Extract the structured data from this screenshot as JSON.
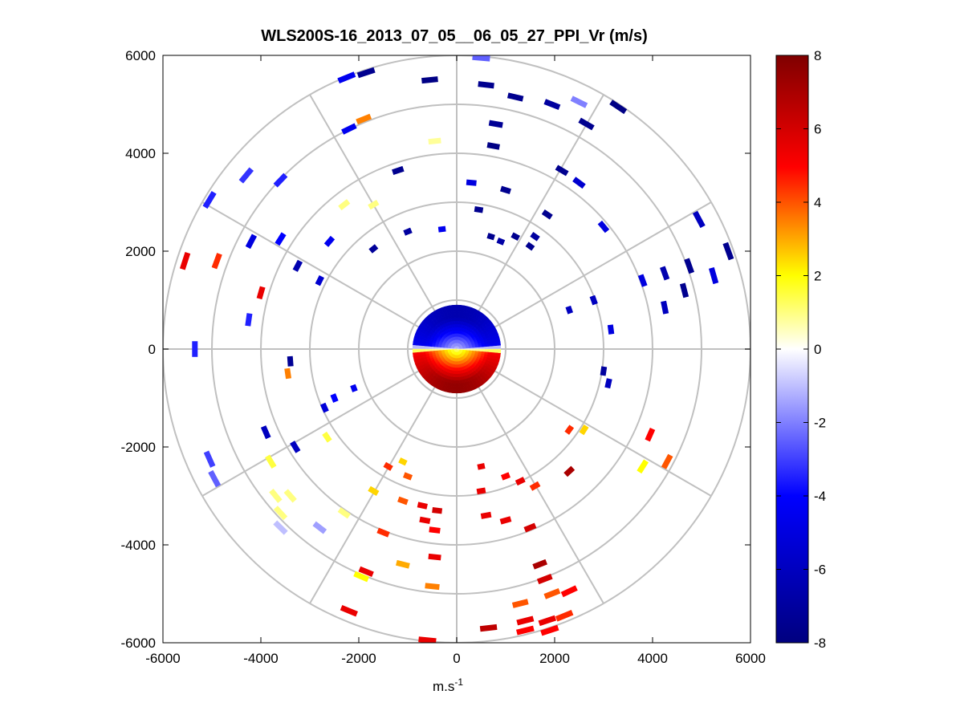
{
  "chart_data": {
    "type": "scatter",
    "subtype": "polar-ppi-scan",
    "title": "WLS200S-16_2013_07_05__06_05_27_PPI_Vr (m/s)",
    "xlabel": "m.s",
    "xlabel_superscript": "-1",
    "ylabel": "",
    "xlim": [
      -6000,
      6000
    ],
    "ylim": [
      -6000,
      6000
    ],
    "x_ticks": [
      -6000,
      -4000,
      -2000,
      0,
      2000,
      4000,
      6000
    ],
    "x_tick_labels": [
      "-6000",
      "-4000",
      "-2000",
      "0",
      "2000",
      "4000",
      "6000"
    ],
    "y_ticks": [
      6000,
      4000,
      2000,
      0,
      -2000,
      -4000,
      -6000
    ],
    "y_tick_labels": [
      "6000",
      "4000",
      "2000",
      "0",
      "-2000",
      "-4000",
      "-6000"
    ],
    "polar_grid": {
      "ring_radii": [
        1000,
        2000,
        3000,
        4000,
        5000,
        6000
      ],
      "spoke_angles_deg": [
        0,
        30,
        60,
        90,
        120,
        150,
        180,
        210,
        240,
        270,
        300,
        330
      ],
      "grid_color": "#c0c0c0"
    },
    "colorbar": {
      "range": [
        -8,
        8
      ],
      "ticks": [
        8,
        6,
        4,
        2,
        0,
        -2,
        -4,
        -6,
        -8
      ],
      "tick_labels": [
        "8",
        "6",
        "4",
        "2",
        "0",
        "-2",
        "-4",
        "-6",
        "-8"
      ],
      "colors": [
        "#00007f",
        "#0000ff",
        "#ffffff",
        "#ffff00",
        "#ff0000",
        "#7f0000"
      ]
    },
    "near_field": {
      "radius_m": 900,
      "description_values": "negative velocities north half (approx -6 to -1), positive south half (approx 1 to 7)"
    },
    "points": [
      {
        "x": -1850,
        "y": 5650,
        "v": -7.5
      },
      {
        "x": -2250,
        "y": 5550,
        "v": -4.5
      },
      {
        "x": -550,
        "y": 5500,
        "v": -7.8
      },
      {
        "x": 500,
        "y": 5950,
        "v": -2.5
      },
      {
        "x": 600,
        "y": 5400,
        "v": -7.5
      },
      {
        "x": 1200,
        "y": 5150,
        "v": -7.5
      },
      {
        "x": 1950,
        "y": 5000,
        "v": -7.0
      },
      {
        "x": 2500,
        "y": 5050,
        "v": -2.0
      },
      {
        "x": 3300,
        "y": 4950,
        "v": -7.8
      },
      {
        "x": 2650,
        "y": 4600,
        "v": -7.5
      },
      {
        "x": 800,
        "y": 4600,
        "v": -7.3
      },
      {
        "x": 750,
        "y": 4150,
        "v": -7.8
      },
      {
        "x": -1900,
        "y": 4700,
        "v": 3.5
      },
      {
        "x": -2200,
        "y": 4500,
        "v": -4.5
      },
      {
        "x": -450,
        "y": 4250,
        "v": 0.8
      },
      {
        "x": -4300,
        "y": 3550,
        "v": -3.2
      },
      {
        "x": -3600,
        "y": 3450,
        "v": -3.5
      },
      {
        "x": -5050,
        "y": 3050,
        "v": -3.5
      },
      {
        "x": -1200,
        "y": 3650,
        "v": -7.5
      },
      {
        "x": 300,
        "y": 3400,
        "v": -5.0
      },
      {
        "x": 1000,
        "y": 3250,
        "v": -7.5
      },
      {
        "x": 2150,
        "y": 3650,
        "v": -7.5
      },
      {
        "x": 2500,
        "y": 3400,
        "v": -5.5
      },
      {
        "x": 1850,
        "y": 2750,
        "v": -7.5
      },
      {
        "x": 3000,
        "y": 2500,
        "v": -5.0
      },
      {
        "x": -2300,
        "y": 2950,
        "v": 1.0
      },
      {
        "x": -1700,
        "y": 2950,
        "v": 1.0
      },
      {
        "x": 450,
        "y": 2850,
        "v": -7.5
      },
      {
        "x": -1000,
        "y": 2400,
        "v": -7.0
      },
      {
        "x": -300,
        "y": 2450,
        "v": -4.5
      },
      {
        "x": 700,
        "y": 2300,
        "v": -7.5
      },
      {
        "x": 1200,
        "y": 2300,
        "v": -7.5
      },
      {
        "x": 900,
        "y": 2200,
        "v": -6.8
      },
      {
        "x": 1500,
        "y": 2100,
        "v": -7.5
      },
      {
        "x": 1600,
        "y": 2300,
        "v": -7.0
      },
      {
        "x": -4200,
        "y": 2200,
        "v": -5.0
      },
      {
        "x": -3600,
        "y": 2250,
        "v": -4.0
      },
      {
        "x": -2600,
        "y": 2200,
        "v": -4.5
      },
      {
        "x": -1700,
        "y": 2050,
        "v": -7.2
      },
      {
        "x": -5550,
        "y": 1800,
        "v": 5.5
      },
      {
        "x": -4900,
        "y": 1800,
        "v": 4.5
      },
      {
        "x": -3250,
        "y": 1700,
        "v": -6.5
      },
      {
        "x": -2800,
        "y": 1400,
        "v": -5.5
      },
      {
        "x": -4000,
        "y": 1150,
        "v": 5.5
      },
      {
        "x": -4250,
        "y": 600,
        "v": -3.5
      },
      {
        "x": -5350,
        "y": 0,
        "v": -3.5
      },
      {
        "x": 4950,
        "y": 2650,
        "v": -6.0
      },
      {
        "x": 5550,
        "y": 2000,
        "v": -7.5
      },
      {
        "x": 4750,
        "y": 1700,
        "v": -7.5
      },
      {
        "x": 5250,
        "y": 1500,
        "v": -5.0
      },
      {
        "x": 4250,
        "y": 1550,
        "v": -6.5
      },
      {
        "x": 3800,
        "y": 1400,
        "v": -5.0
      },
      {
        "x": 4650,
        "y": 1200,
        "v": -7.5
      },
      {
        "x": 4250,
        "y": 850,
        "v": -6.0
      },
      {
        "x": 2300,
        "y": 800,
        "v": -6.0
      },
      {
        "x": 2800,
        "y": 1000,
        "v": -6.0
      },
      {
        "x": 3150,
        "y": 400,
        "v": -5.0
      },
      {
        "x": 3000,
        "y": -450,
        "v": -7.0
      },
      {
        "x": 3100,
        "y": -700,
        "v": -6.0
      },
      {
        "x": -3400,
        "y": -250,
        "v": -7.3
      },
      {
        "x": -3450,
        "y": -500,
        "v": 3.5
      },
      {
        "x": -2500,
        "y": -1000,
        "v": -4.0
      },
      {
        "x": -2100,
        "y": -800,
        "v": -4.5
      },
      {
        "x": -2700,
        "y": -1200,
        "v": -5.2
      },
      {
        "x": -3900,
        "y": -1700,
        "v": -6.0
      },
      {
        "x": -3300,
        "y": -2000,
        "v": -6.0
      },
      {
        "x": -2650,
        "y": -1800,
        "v": 1.5
      },
      {
        "x": -5050,
        "y": -2250,
        "v": -3.0
      },
      {
        "x": -4950,
        "y": -2650,
        "v": -2.5
      },
      {
        "x": -3800,
        "y": -2300,
        "v": 1.5
      },
      {
        "x": -3700,
        "y": -3000,
        "v": 1.0
      },
      {
        "x": -3400,
        "y": -3000,
        "v": 1.0
      },
      {
        "x": -3600,
        "y": -3350,
        "v": 1.0
      },
      {
        "x": -3600,
        "y": -3650,
        "v": -1.0
      },
      {
        "x": -2800,
        "y": -3650,
        "v": -1.5
      },
      {
        "x": -2300,
        "y": -3350,
        "v": 1.0
      },
      {
        "x": -1100,
        "y": -2300,
        "v": 2.5
      },
      {
        "x": -1400,
        "y": -2400,
        "v": 4.5
      },
      {
        "x": -1000,
        "y": -2600,
        "v": 4.0
      },
      {
        "x": -1700,
        "y": -2900,
        "v": 2.5
      },
      {
        "x": -1100,
        "y": -3100,
        "v": 4.0
      },
      {
        "x": -700,
        "y": -3200,
        "v": 5.5
      },
      {
        "x": -400,
        "y": -3300,
        "v": 6.0
      },
      {
        "x": 500,
        "y": -2400,
        "v": 5.5
      },
      {
        "x": 500,
        "y": -2900,
        "v": 5.5
      },
      {
        "x": 1000,
        "y": -2600,
        "v": 5.0
      },
      {
        "x": 1300,
        "y": -2700,
        "v": 5.5
      },
      {
        "x": 1600,
        "y": -2800,
        "v": 4.5
      },
      {
        "x": 2300,
        "y": -2500,
        "v": 7.0
      },
      {
        "x": 2300,
        "y": -1650,
        "v": 4.5
      },
      {
        "x": 2600,
        "y": -1650,
        "v": 2.5
      },
      {
        "x": 3950,
        "y": -1750,
        "v": 5.0
      },
      {
        "x": 3800,
        "y": -2400,
        "v": 2.0
      },
      {
        "x": 4300,
        "y": -2300,
        "v": 4.0
      },
      {
        "x": 600,
        "y": -3400,
        "v": 5.5
      },
      {
        "x": 1000,
        "y": -3500,
        "v": 5.5
      },
      {
        "x": -650,
        "y": -3500,
        "v": 5.5
      },
      {
        "x": -450,
        "y": -3700,
        "v": 5.0
      },
      {
        "x": -1500,
        "y": -3750,
        "v": 4.5
      },
      {
        "x": 1500,
        "y": -3650,
        "v": 6.0
      },
      {
        "x": -450,
        "y": -4250,
        "v": 5.5
      },
      {
        "x": -1100,
        "y": -4400,
        "v": 3.0
      },
      {
        "x": -1850,
        "y": -4550,
        "v": 5.5
      },
      {
        "x": -1950,
        "y": -4650,
        "v": 2.0
      },
      {
        "x": -500,
        "y": -4850,
        "v": 3.5
      },
      {
        "x": 1700,
        "y": -4400,
        "v": 7.0
      },
      {
        "x": 1800,
        "y": -4700,
        "v": 6.0
      },
      {
        "x": 2300,
        "y": -4950,
        "v": 5.0
      },
      {
        "x": 1950,
        "y": -5000,
        "v": 4.0
      },
      {
        "x": 1300,
        "y": -5200,
        "v": 4.0
      },
      {
        "x": -2200,
        "y": -5350,
        "v": 5.5
      },
      {
        "x": 650,
        "y": -5700,
        "v": 6.5
      },
      {
        "x": 1400,
        "y": -5550,
        "v": 5.5
      },
      {
        "x": 1400,
        "y": -5750,
        "v": 5.0
      },
      {
        "x": 1850,
        "y": -5550,
        "v": 5.5
      },
      {
        "x": 1900,
        "y": -5750,
        "v": 5.0
      },
      {
        "x": 2200,
        "y": -5450,
        "v": 4.5
      },
      {
        "x": -600,
        "y": -5950,
        "v": 5.5
      }
    ]
  }
}
